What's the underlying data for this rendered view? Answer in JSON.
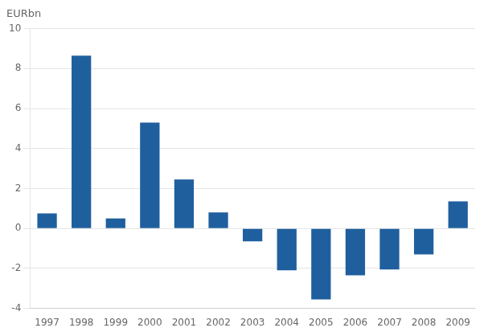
{
  "chart_data": {
    "type": "bar",
    "ylabel": "EURbn",
    "categories": [
      "1997",
      "1998",
      "1999",
      "2000",
      "2001",
      "2002",
      "2003",
      "2004",
      "2005",
      "2006",
      "2007",
      "2008",
      "2009"
    ],
    "values": [
      0.75,
      8.65,
      0.5,
      5.3,
      2.45,
      0.8,
      -0.65,
      -2.1,
      -3.55,
      -2.35,
      -2.05,
      -1.3,
      1.35
    ],
    "color": "#1F5F9E",
    "ylim": [
      -4,
      10
    ],
    "yticks": [
      -4,
      -2,
      0,
      2,
      4,
      6,
      8,
      10
    ],
    "grid": true
  }
}
